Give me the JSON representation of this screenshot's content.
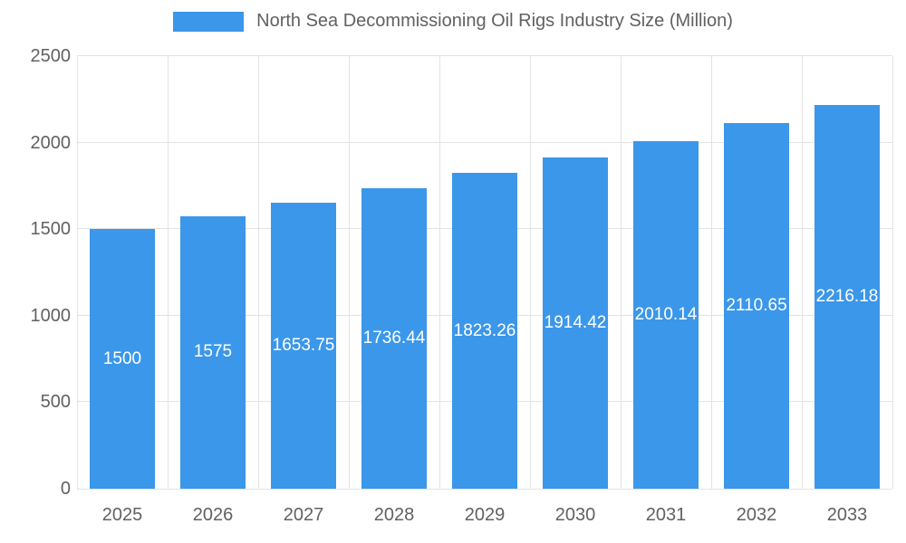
{
  "colors": {
    "bar": "#3b97ea",
    "grid": "#e3e3e3",
    "axis_text": "#616161",
    "title_text": "#616161",
    "value_label_text": "#ffffff"
  },
  "legend": {
    "label": "North Sea Decommissioning Oil Rigs Industry Size (Million)"
  },
  "chart_data": {
    "type": "bar",
    "title": "North Sea Decommissioning Oil Rigs Industry Size (Million)",
    "categories": [
      "2025",
      "2026",
      "2027",
      "2028",
      "2029",
      "2030",
      "2031",
      "2032",
      "2033"
    ],
    "values": [
      1500,
      1575,
      1653.75,
      1736.44,
      1823.26,
      1914.42,
      2010.14,
      2110.65,
      2216.18
    ],
    "value_labels": [
      "1500",
      "1575",
      "1653.75",
      "1736.44",
      "1823.26",
      "1914.42",
      "2010.14",
      "2110.65",
      "2216.18"
    ],
    "xlabel": "",
    "ylabel": "",
    "ylim": [
      0,
      2500
    ],
    "y_ticks": [
      0,
      500,
      1000,
      1500,
      2000,
      2500
    ],
    "grid": true,
    "legend_position": "top"
  }
}
